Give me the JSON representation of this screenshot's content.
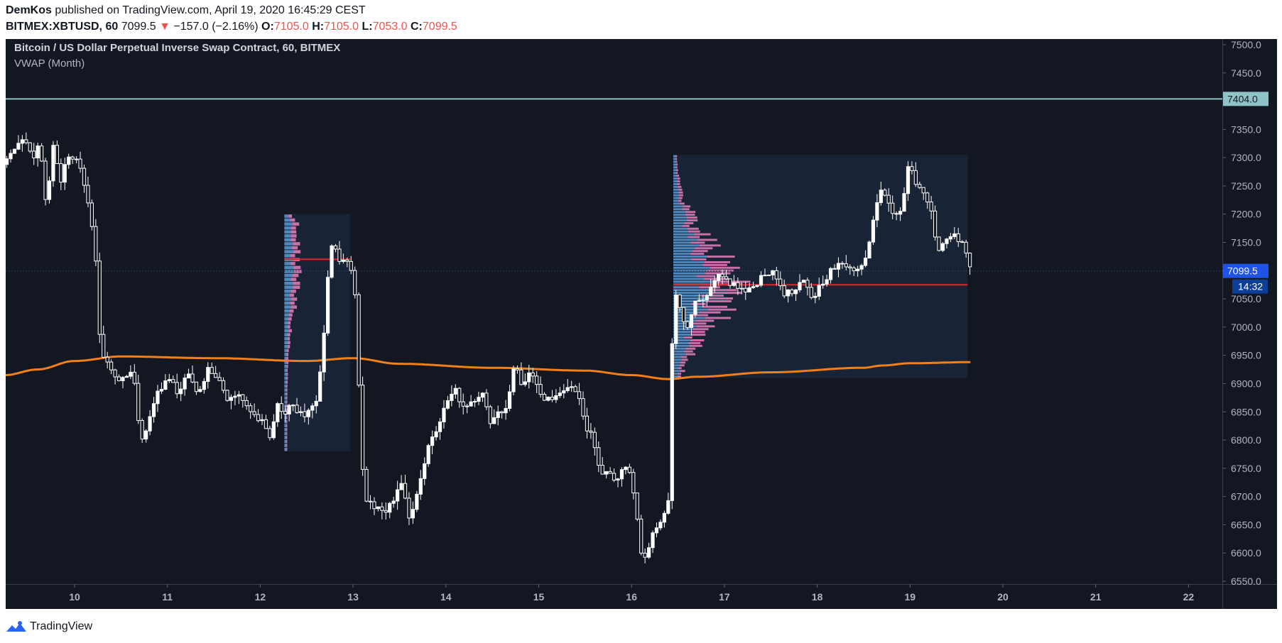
{
  "header": {
    "author": "DemKos",
    "published_text": " published on TradingView.com, April 19, 2020 16:45:29 CEST",
    "symbol": "BITMEX:XBTUSD, 60",
    "last": "7099.5",
    "change_arrow": "▼",
    "change": "−157.0 (−2.16%)",
    "o_label": "O:",
    "o_value": "7105.0",
    "h_label": "H:",
    "h_value": "7105.0",
    "l_label": "L:",
    "l_value": "7053.0",
    "c_label": "C:",
    "c_value": "7099.5"
  },
  "legend": {
    "title": "Bitcoin / US Dollar Perpetual Inverse Swap Contract, 60, BITMEX",
    "indicator": "VWAP (Month)"
  },
  "footer": {
    "brand": "TradingView"
  },
  "colors": {
    "background": "#131722",
    "candle": "#ffffff",
    "vwap": "#f57f17",
    "poc": "#e8202a",
    "hline": "#8fc3c8",
    "vp_blue": "#5b9bd5",
    "vp_pink": "#e880c0",
    "price_badge": "#1e53e5"
  },
  "chart_data": {
    "type": "candlestick",
    "y_ticks": [
      "7500.0",
      "7450.0",
      "7400.0",
      "7350.0",
      "7300.0",
      "7250.0",
      "7200.0",
      "7150.0",
      "7100.0",
      "7050.0",
      "7000.0",
      "6950.0",
      "6900.0",
      "6850.0",
      "6800.0",
      "6750.0",
      "6700.0",
      "6650.0",
      "6600.0",
      "6550.0"
    ],
    "x_ticks": [
      "10",
      "11",
      "12",
      "13",
      "14",
      "15",
      "16",
      "17",
      "18",
      "19",
      "20",
      "21",
      "22"
    ],
    "ylim": [
      6545,
      7510
    ],
    "horizontal_line": {
      "value": 7404.0,
      "label": "7404.0"
    },
    "last_price": {
      "value": 7099.5,
      "label": "7099.5",
      "countdown": "14:32"
    },
    "vwap_key": [
      [
        9.25,
        6915
      ],
      [
        9.6,
        6925
      ],
      [
        10.0,
        6940
      ],
      [
        10.5,
        6948
      ],
      [
        11.5,
        6945
      ],
      [
        12.5,
        6940
      ],
      [
        13.0,
        6945
      ],
      [
        13.5,
        6935
      ],
      [
        14.5,
        6928
      ],
      [
        15.5,
        6923
      ],
      [
        16.0,
        6915
      ],
      [
        16.4,
        6908
      ],
      [
        16.7,
        6912
      ],
      [
        17.5,
        6920
      ],
      [
        18.5,
        6928
      ],
      [
        18.7,
        6932
      ],
      [
        19.0,
        6936
      ],
      [
        19.66,
        6938
      ]
    ],
    "volume_profiles": [
      {
        "start": 12.26,
        "end": 12.97,
        "high": 7200,
        "low": 6780,
        "poc": 7120,
        "poc_end": 12.97
      },
      {
        "start": 16.45,
        "end": 19.62,
        "high": 7305,
        "low": 6910,
        "poc": 7075,
        "poc_end": 19.62
      }
    ],
    "anchors": [
      [
        9.27,
        7300
      ],
      [
        9.45,
        7340
      ],
      [
        9.55,
        7290
      ],
      [
        9.62,
        7330
      ],
      [
        9.7,
        7200
      ],
      [
        9.76,
        7330
      ],
      [
        9.85,
        7260
      ],
      [
        9.95,
        7310
      ],
      [
        10.05,
        7290
      ],
      [
        10.13,
        7240
      ],
      [
        10.22,
        7150
      ],
      [
        10.28,
        6950
      ],
      [
        10.38,
        6930
      ],
      [
        10.5,
        6900
      ],
      [
        10.62,
        6930
      ],
      [
        10.72,
        6790
      ],
      [
        10.82,
        6850
      ],
      [
        10.92,
        6890
      ],
      [
        11.02,
        6910
      ],
      [
        11.12,
        6880
      ],
      [
        11.22,
        6920
      ],
      [
        11.32,
        6880
      ],
      [
        11.45,
        6930
      ],
      [
        11.55,
        6910
      ],
      [
        11.65,
        6870
      ],
      [
        11.78,
        6880
      ],
      [
        11.9,
        6850
      ],
      [
        12.02,
        6830
      ],
      [
        12.1,
        6800
      ],
      [
        12.18,
        6860
      ],
      [
        12.26,
        6850
      ],
      [
        12.34,
        6870
      ],
      [
        12.4,
        6840
      ],
      [
        12.5,
        6850
      ],
      [
        12.6,
        6870
      ],
      [
        12.66,
        6930
      ],
      [
        12.72,
        7070
      ],
      [
        12.78,
        7155
      ],
      [
        12.84,
        7110
      ],
      [
        12.9,
        7120
      ],
      [
        12.96,
        7110
      ],
      [
        13.02,
        7060
      ],
      [
        13.07,
        6860
      ],
      [
        13.12,
        6690
      ],
      [
        13.2,
        6690
      ],
      [
        13.3,
        6670
      ],
      [
        13.42,
        6690
      ],
      [
        13.52,
        6720
      ],
      [
        13.62,
        6650
      ],
      [
        13.7,
        6720
      ],
      [
        13.8,
        6780
      ],
      [
        13.9,
        6820
      ],
      [
        14.0,
        6860
      ],
      [
        14.1,
        6890
      ],
      [
        14.2,
        6850
      ],
      [
        14.3,
        6870
      ],
      [
        14.4,
        6890
      ],
      [
        14.48,
        6830
      ],
      [
        14.56,
        6850
      ],
      [
        14.66,
        6860
      ],
      [
        14.75,
        6940
      ],
      [
        14.82,
        6900
      ],
      [
        14.92,
        6920
      ],
      [
        15.02,
        6880
      ],
      [
        15.12,
        6870
      ],
      [
        15.22,
        6880
      ],
      [
        15.32,
        6900
      ],
      [
        15.42,
        6880
      ],
      [
        15.5,
        6830
      ],
      [
        15.58,
        6800
      ],
      [
        15.66,
        6740
      ],
      [
        15.74,
        6750
      ],
      [
        15.82,
        6720
      ],
      [
        15.9,
        6750
      ],
      [
        15.98,
        6740
      ],
      [
        16.04,
        6690
      ],
      [
        16.1,
        6600
      ],
      [
        16.16,
        6590
      ],
      [
        16.24,
        6640
      ],
      [
        16.32,
        6660
      ],
      [
        16.4,
        6700
      ],
      [
        16.44,
        6990
      ],
      [
        16.48,
        7060
      ],
      [
        16.55,
        7020
      ],
      [
        16.62,
        7000
      ],
      [
        16.7,
        7050
      ],
      [
        16.78,
        7040
      ],
      [
        16.86,
        7070
      ],
      [
        16.95,
        7090
      ],
      [
        17.05,
        7080
      ],
      [
        17.15,
        7070
      ],
      [
        17.25,
        7060
      ],
      [
        17.35,
        7080
      ],
      [
        17.45,
        7100
      ],
      [
        17.55,
        7090
      ],
      [
        17.65,
        7060
      ],
      [
        17.75,
        7060
      ],
      [
        17.85,
        7080
      ],
      [
        17.95,
        7050
      ],
      [
        18.05,
        7080
      ],
      [
        18.15,
        7100
      ],
      [
        18.25,
        7110
      ],
      [
        18.35,
        7110
      ],
      [
        18.45,
        7100
      ],
      [
        18.52,
        7120
      ],
      [
        18.6,
        7190
      ],
      [
        18.68,
        7250
      ],
      [
        18.76,
        7230
      ],
      [
        18.84,
        7190
      ],
      [
        18.92,
        7220
      ],
      [
        19.0,
        7300
      ],
      [
        19.06,
        7250
      ],
      [
        19.14,
        7240
      ],
      [
        19.22,
        7220
      ],
      [
        19.3,
        7130
      ],
      [
        19.38,
        7150
      ],
      [
        19.46,
        7170
      ],
      [
        19.54,
        7150
      ],
      [
        19.6,
        7140
      ],
      [
        19.66,
        7100
      ]
    ]
  }
}
